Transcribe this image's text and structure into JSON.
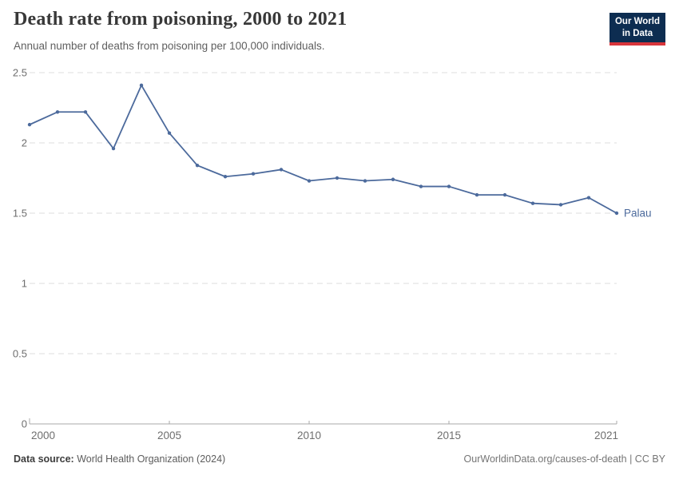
{
  "header": {
    "title": "Death rate from poisoning, 2000 to 2021",
    "subtitle": "Annual number of deaths from poisoning per 100,000 individuals.",
    "logo": {
      "line1": "Our World",
      "line2": "in Data",
      "bg_color": "#0D2D51",
      "accent_color": "#D8353B"
    }
  },
  "chart_data": {
    "type": "line",
    "title": "Death rate from poisoning, 2000 to 2021",
    "xlabel": "",
    "ylabel": "",
    "xlim": [
      2000,
      2021
    ],
    "ylim": [
      0,
      2.5
    ],
    "grid": "horizontal-dashed",
    "legend_position": "end-of-line-label",
    "x_ticks": [
      2000,
      2005,
      2010,
      2015,
      2021
    ],
    "x_tick_labels": [
      "2000",
      "2005",
      "2010",
      "2015",
      "2021"
    ],
    "y_ticks": [
      0,
      0.5,
      1,
      1.5,
      2,
      2.5
    ],
    "y_tick_labels": [
      "0",
      "0.5",
      "1",
      "1.5",
      "2",
      "2.5"
    ],
    "series": [
      {
        "name": "Palau",
        "color": "#4C6A9C",
        "x": [
          2000,
          2001,
          2002,
          2003,
          2004,
          2005,
          2006,
          2007,
          2008,
          2009,
          2010,
          2011,
          2012,
          2013,
          2014,
          2015,
          2016,
          2017,
          2018,
          2019,
          2020,
          2021
        ],
        "values": [
          2.13,
          2.22,
          2.22,
          1.96,
          2.41,
          2.07,
          1.84,
          1.76,
          1.78,
          1.81,
          1.73,
          1.75,
          1.73,
          1.74,
          1.69,
          1.69,
          1.63,
          1.63,
          1.57,
          1.56,
          1.61,
          1.5
        ]
      }
    ]
  },
  "footer": {
    "source_label": "Data source:",
    "source_value": " World Health Organization (2024)",
    "link": "OurWorldinData.org/causes-of-death",
    "license": " | CC BY"
  }
}
